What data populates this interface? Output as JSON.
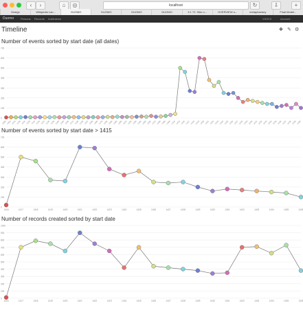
{
  "browser": {
    "url": "localhost",
    "tabs": [
      "Design",
      "Wikipedia Lan...",
      "DUOMO",
      "DUOMO",
      "DUOMO",
      "DUOMO",
      "3.1 72: Sitio o...",
      "OVERVIEW o...",
      "metaphactory",
      "Final Model..."
    ]
  },
  "app": {
    "brand": "Duomo",
    "menu": [
      "Persons",
      "Records",
      "Institutions"
    ],
    "right_menu": [
      "VIVICS",
      "Account"
    ]
  },
  "page": {
    "title": "Timeline"
  },
  "chart_data": [
    {
      "type": "line",
      "title": "Number of events sorted by start date (all dates)",
      "ylim": [
        0,
        700
      ],
      "yticks": [
        0,
        100,
        200,
        300,
        400,
        500,
        600,
        700
      ],
      "x": [
        "1000",
        "1054",
        "1075",
        "1100",
        "1102",
        "1105",
        "1110",
        "1120",
        "1124",
        "1130",
        "1150",
        "1160",
        "1180",
        "1200",
        "1212",
        "1220",
        "1230",
        "1244",
        "1250",
        "1260",
        "1270",
        "1280",
        "1286",
        "1290",
        "1300",
        "1310",
        "1320",
        "1330",
        "1340",
        "1350",
        "1360",
        "1370",
        "1380",
        "1390",
        "1400",
        "1410",
        "1415",
        "1416",
        "1417",
        "1418",
        "1419",
        "1420",
        "1421",
        "1422",
        "1423",
        "1424",
        "1425",
        "1426",
        "1427",
        "1428",
        "1429",
        "1430",
        "1431",
        "1432",
        "1433",
        "1434",
        "1435",
        "1436",
        "1437",
        "1438",
        "1439",
        "1440"
      ],
      "values": [
        5,
        7,
        6,
        6,
        8,
        6,
        6,
        7,
        6,
        6,
        8,
        6,
        7,
        7,
        8,
        6,
        7,
        6,
        8,
        6,
        7,
        10,
        8,
        12,
        9,
        10,
        8,
        12,
        14,
        12,
        20,
        12,
        14,
        20,
        30,
        40,
        500,
        460,
        270,
        260,
        600,
        590,
        380,
        320,
        360,
        250,
        240,
        250,
        200,
        160,
        180,
        170,
        160,
        150,
        140,
        140,
        110,
        120,
        130,
        100,
        140,
        100
      ],
      "colors": [
        "#d9534f",
        "#f0ad4e",
        "#b5d98a",
        "#7fd3e0",
        "#6b7fd4",
        "#a5d6a7",
        "#e6a0c4",
        "#9e9ee0",
        "#ffe08a",
        "#9fd8f0",
        "#b7e1a1",
        "#e89a9a",
        "#c5a5e0",
        "#a0d0b0",
        "#f5c27a",
        "#90c0f0",
        "#e0e080",
        "#c0a0d0",
        "#80d0c0",
        "#f0a0a0",
        "#a0b0e0",
        "#d0e090",
        "#e0b080",
        "#90e0d0",
        "#c090c0",
        "#a0c0a0",
        "#f0c0a0",
        "#8090d0",
        "#d0a090",
        "#b0e0b0",
        "#e09090",
        "#9090e0",
        "#e0d090",
        "#90d0a0",
        "#d0b0e0",
        "#f0e090",
        "#a8e08a",
        "#7fd3e0",
        "#6b7fd4",
        "#9e7fd4",
        "#d26eb8",
        "#e88080",
        "#f0c070",
        "#d0e088",
        "#a8e0a8",
        "#7fd3e0",
        "#6b7fd4",
        "#7a8ee0",
        "#d26eb8",
        "#e88080",
        "#f0b070",
        "#e0e080",
        "#f0d080",
        "#a8e0a8",
        "#7fd3e0",
        "#7fb0e0",
        "#6b7fd4",
        "#9e7fd4",
        "#d26eb8",
        "#c080e0",
        "#e088c0",
        "#a070d8"
      ]
    },
    {
      "type": "line",
      "title": "Number of events sorted by start date > 1415",
      "ylim": [
        0,
        700
      ],
      "yticks": [
        0,
        100,
        200,
        300,
        400,
        500,
        600,
        700
      ],
      "x": [
        "1416",
        "1417",
        "1418",
        "1419",
        "1420",
        "1421",
        "1422",
        "1423",
        "1424",
        "1425",
        "1426",
        "1427",
        "1428",
        "1429",
        "1430",
        "1431",
        "1432",
        "1433",
        "1434",
        "1435",
        "1436"
      ],
      "values": [
        20,
        500,
        460,
        270,
        260,
        600,
        590,
        380,
        320,
        360,
        250,
        240,
        250,
        200,
        160,
        180,
        170,
        160,
        150,
        140,
        100
      ],
      "colors": [
        "#d9534f",
        "#e6e080",
        "#a8e08a",
        "#a8e0a8",
        "#7fd3e0",
        "#6b7fd4",
        "#9e7fd4",
        "#d26eb8",
        "#e87070",
        "#f0c070",
        "#d0e088",
        "#a8e0a8",
        "#7fd3e0",
        "#6b7fd4",
        "#9e7fd4",
        "#d26eb8",
        "#e88080",
        "#f0b070",
        "#d0e088",
        "#a8e0a8",
        "#7fd3e0"
      ]
    },
    {
      "type": "line",
      "title": "Number of records created sorted by start date",
      "ylim": [
        0,
        1000
      ],
      "yticks": [
        0,
        100,
        200,
        300,
        400,
        500,
        600,
        700,
        800,
        900,
        1000
      ],
      "x": [
        "1416",
        "1417",
        "1418",
        "1419",
        "1420",
        "1421",
        "1422",
        "1423",
        "1424",
        "1425",
        "1426",
        "1427",
        "1428",
        "1429",
        "1430",
        "1431",
        "1432",
        "1433",
        "1434",
        "1435",
        "1436"
      ],
      "values": [
        10,
        700,
        790,
        750,
        650,
        900,
        750,
        650,
        420,
        700,
        440,
        420,
        400,
        380,
        340,
        350,
        700,
        710,
        620,
        730,
        380
      ],
      "colors": [
        "#d9534f",
        "#e6e080",
        "#a8e08a",
        "#a8e0a8",
        "#7fd3e0",
        "#6b7fd4",
        "#9e7fd4",
        "#d26eb8",
        "#e87070",
        "#f0c070",
        "#d0e088",
        "#a8e0a8",
        "#7fd3e0",
        "#6b7fd4",
        "#9e7fd4",
        "#d26eb8",
        "#e87070",
        "#f0c070",
        "#d0e088",
        "#a8e0a8",
        "#7fd3e0"
      ]
    }
  ]
}
